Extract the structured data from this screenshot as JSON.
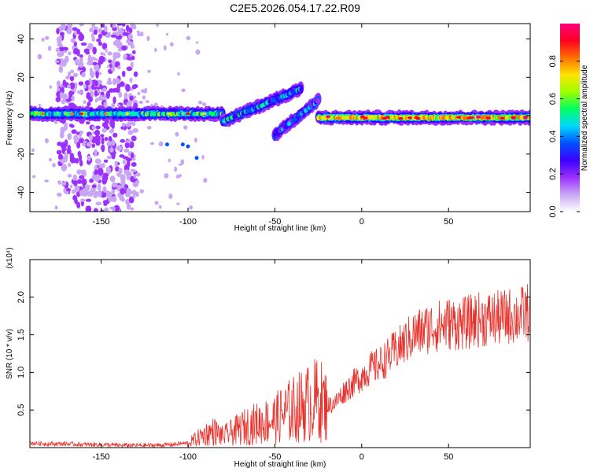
{
  "title": "C2E5.2026.054.17.22.R09",
  "chart_data": [
    {
      "type": "heatmap",
      "title": "C2E5.2026.054.17.22.R09",
      "xlabel": "Height of straight line (km)",
      "ylabel": "Frequency (Hz)",
      "xlim": [
        -191,
        97
      ],
      "ylim": [
        -50,
        48
      ],
      "x_ticks": [
        -150,
        -100,
        -50,
        0,
        50
      ],
      "y_ticks": [
        -40,
        -20,
        0,
        20,
        40
      ],
      "colorbar": {
        "label": "Normalized spectral amplitude",
        "range": [
          0,
          1
        ],
        "ticks": [
          "0.0",
          "0.2",
          "0.4",
          "0.6",
          "0.8"
        ],
        "colors": [
          "#ffffff",
          "#c9a6f5",
          "#9b30ff",
          "#3a00ff",
          "#0050ff",
          "#00d8ff",
          "#00ff60",
          "#9cff00",
          "#ffe400",
          "#ff7000",
          "#ff0020",
          "#ff0080"
        ]
      },
      "features": [
        {
          "name": "main band (left)",
          "x_range": [
            -191,
            -80
          ],
          "freq": 1,
          "amplitude": 0.5
        },
        {
          "name": "rising branch 1",
          "x_range": [
            -80,
            -35
          ],
          "freq_range": [
            -3,
            14
          ],
          "amplitude": 0.4
        },
        {
          "name": "rising branch 2",
          "x_range": [
            -50,
            -25
          ],
          "freq_range": [
            -10,
            8
          ],
          "amplitude": 0.35
        },
        {
          "name": "main band (right)",
          "x_range": [
            -25,
            97
          ],
          "freq": -1,
          "amplitude": 0.7
        },
        {
          "name": "broadband scatter",
          "x_range": [
            -175,
            -130
          ],
          "freq_range": [
            -50,
            48
          ],
          "amplitude": 0.15
        }
      ]
    },
    {
      "type": "line",
      "xlabel": "Height of straight line (km)",
      "ylabel": "SNR (10 * v/v)",
      "y_multiplier": "(x10⁴)",
      "xlim": [
        -191,
        97
      ],
      "ylim": [
        0,
        2.5
      ],
      "x_ticks": [
        -150,
        -100,
        -50,
        0,
        50
      ],
      "y_ticks": [
        "0.5",
        "1.0",
        "1.5",
        "2.0"
      ],
      "color": "#e8302a",
      "series": [
        {
          "name": "SNR",
          "x": [
            -191,
            -180,
            -170,
            -160,
            -150,
            -140,
            -130,
            -120,
            -110,
            -100,
            -95,
            -90,
            -85,
            -80,
            -75,
            -70,
            -65,
            -60,
            -55,
            -50,
            -45,
            -40,
            -35,
            -30,
            -25,
            -20,
            -15,
            -10,
            -5,
            0,
            5,
            10,
            15,
            20,
            25,
            30,
            35,
            40,
            45,
            50,
            55,
            60,
            65,
            70,
            75,
            80,
            85,
            90,
            95
          ],
          "values": [
            0.06,
            0.05,
            0.05,
            0.04,
            0.04,
            0.03,
            0.03,
            0.03,
            0.04,
            0.06,
            0.12,
            0.18,
            0.22,
            0.15,
            0.2,
            0.25,
            0.3,
            0.32,
            0.35,
            0.38,
            0.45,
            0.5,
            0.55,
            0.6,
            0.65,
            0.55,
            0.6,
            0.75,
            0.85,
            0.95,
            1.05,
            1.1,
            1.2,
            1.3,
            1.4,
            1.5,
            1.55,
            1.6,
            1.62,
            1.65,
            1.65,
            1.65,
            1.7,
            1.7,
            1.72,
            1.72,
            1.75,
            1.75,
            1.8
          ]
        }
      ]
    }
  ]
}
